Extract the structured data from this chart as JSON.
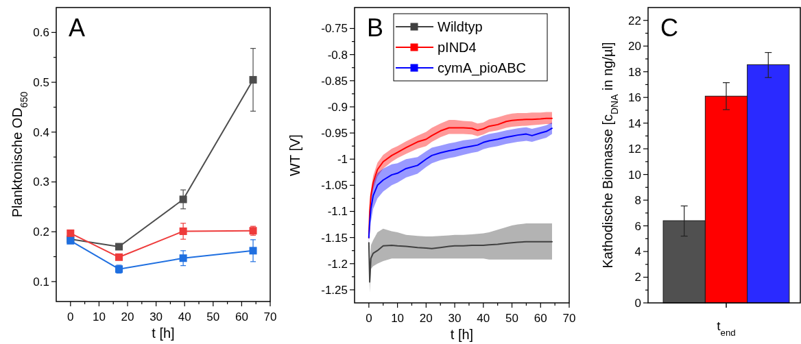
{
  "chart_data": [
    {
      "type": "line",
      "title": "A",
      "xlabel": "t [h]",
      "ylabel": "Planktonische OD$_{650}$",
      "marker": "square",
      "xlim": [
        -5,
        70
      ],
      "ylim": [
        0.06,
        0.65
      ],
      "xticks": [
        0,
        {
          "value": 5,
          "label": null
        },
        10,
        {
          "value": 15,
          "label": null
        },
        20,
        {
          "value": 25,
          "label": null
        },
        30,
        {
          "value": 35,
          "label": null
        },
        40,
        {
          "value": 45,
          "label": null
        },
        50,
        {
          "value": 55,
          "label": null
        },
        60,
        {
          "value": 65,
          "label": null
        },
        70
      ],
      "yticks": [
        0.1,
        {
          "value": 0.15,
          "label": null
        },
        0.2,
        {
          "value": 0.25,
          "label": null
        },
        0.3,
        {
          "value": 0.35,
          "label": null
        },
        0.4,
        {
          "value": 0.45,
          "label": null
        },
        0.5,
        {
          "value": 0.55,
          "label": null
        },
        0.6
      ],
      "x": [
        0,
        17,
        39.5,
        64
      ],
      "series": [
        {
          "color": "#4d4d4d",
          "values": [
            0.185,
            0.17,
            0.265,
            0.505
          ],
          "errors": [
            null,
            null,
            0.019,
            0.063
          ]
        },
        {
          "color": "#ee3b3b",
          "values": [
            0.197,
            0.149,
            0.201,
            0.202
          ],
          "errors": [
            0.006,
            0.005,
            0.016,
            0.009
          ]
        },
        {
          "color": "#1f6fe0",
          "values": [
            0.182,
            0.125,
            0.147,
            0.162
          ],
          "errors": [
            0.005,
            0.008,
            0.015,
            0.022
          ]
        }
      ]
    },
    {
      "type": "line",
      "title": "B",
      "xlabel": "t [h]",
      "ylabel": "WT [V]",
      "legend": "top right",
      "xlim": [
        -5,
        70
      ],
      "ylim": [
        -1.275,
        -0.71
      ],
      "xticks": [
        0,
        {
          "value": 5,
          "label": null
        },
        10,
        {
          "value": 15,
          "label": null
        },
        20,
        {
          "value": 25,
          "label": null
        },
        30,
        {
          "value": 35,
          "label": null
        },
        40,
        {
          "value": 45,
          "label": null
        },
        50,
        {
          "value": 55,
          "label": null
        },
        60,
        {
          "value": 65,
          "label": null
        },
        70
      ],
      "yticks": [
        -0.75,
        {
          "value": -0.775,
          "label": null
        },
        -0.8,
        {
          "value": -0.825,
          "label": null
        },
        -0.85,
        {
          "value": -0.875,
          "label": null
        },
        -0.9,
        {
          "value": -0.925,
          "label": null
        },
        -0.95,
        {
          "value": -0.975,
          "label": null
        },
        -1,
        {
          "value": -1.025,
          "label": null
        },
        -1.05,
        {
          "value": -1.075,
          "label": null
        },
        -1.1,
        {
          "value": -1.125,
          "label": null
        },
        -1.15,
        {
          "value": -1.175,
          "label": null
        },
        -1.2,
        {
          "value": -1.225,
          "label": null
        },
        -1.25
      ],
      "x": [
        0,
        0.3,
        0.7,
        1.5,
        3,
        5,
        8,
        10,
        13,
        17,
        20,
        22,
        25,
        28,
        30,
        33,
        36,
        38,
        40,
        42,
        45,
        48,
        50,
        52,
        55,
        57,
        60,
        62,
        64
      ],
      "series": [
        {
          "name": "Wildtyp",
          "color": "#404040",
          "values": [
            -1.16,
            -1.235,
            -1.19,
            -1.18,
            -1.175,
            -1.166,
            -1.165,
            -1.166,
            -1.167,
            -1.169,
            -1.17,
            -1.171,
            -1.169,
            -1.167,
            -1.166,
            -1.166,
            -1.165,
            -1.165,
            -1.165,
            -1.164,
            -1.163,
            -1.161,
            -1.16,
            -1.159,
            -1.158,
            -1.158,
            -1.158,
            -1.158,
            -1.158
          ],
          "lower": [
            -1.165,
            -1.255,
            -1.21,
            -1.205,
            -1.2,
            -1.195,
            -1.19,
            -1.19,
            -1.19,
            -1.19,
            -1.19,
            -1.19,
            -1.19,
            -1.19,
            -1.19,
            -1.19,
            -1.19,
            -1.19,
            -1.19,
            -1.192,
            -1.192,
            -1.192,
            -1.192,
            -1.192,
            -1.192,
            -1.192,
            -1.192,
            -1.192,
            -1.192
          ],
          "upper": [
            -1.155,
            -1.2,
            -1.165,
            -1.155,
            -1.14,
            -1.133,
            -1.138,
            -1.14,
            -1.145,
            -1.147,
            -1.148,
            -1.148,
            -1.147,
            -1.146,
            -1.145,
            -1.145,
            -1.144,
            -1.143,
            -1.142,
            -1.14,
            -1.135,
            -1.13,
            -1.127,
            -1.125,
            -1.123,
            -1.123,
            -1.123,
            -1.123,
            -1.123
          ]
        },
        {
          "name": "pIND4",
          "color": "#ff0000",
          "values": [
            -1.15,
            -1.1,
            -1.07,
            -1.045,
            -1.02,
            -1.005,
            -0.993,
            -0.987,
            -0.978,
            -0.967,
            -0.962,
            -0.955,
            -0.946,
            -0.94,
            -0.94,
            -0.94,
            -0.941,
            -0.945,
            -0.942,
            -0.937,
            -0.934,
            -0.928,
            -0.926,
            -0.925,
            -0.924,
            -0.924,
            -0.923,
            -0.922,
            -0.922
          ],
          "lower": [
            -1.16,
            -1.11,
            -1.08,
            -1.058,
            -1.033,
            -1.018,
            -1.005,
            -0.998,
            -0.99,
            -0.98,
            -0.975,
            -0.967,
            -0.958,
            -0.952,
            -0.952,
            -0.952,
            -0.953,
            -0.956,
            -0.953,
            -0.948,
            -0.945,
            -0.94,
            -0.938,
            -0.937,
            -0.936,
            -0.935,
            -0.934,
            -0.933,
            -0.933
          ],
          "upper": [
            -1.14,
            -1.09,
            -1.06,
            -1.032,
            -1.007,
            -0.992,
            -0.98,
            -0.975,
            -0.966,
            -0.955,
            -0.948,
            -0.94,
            -0.932,
            -0.925,
            -0.925,
            -0.927,
            -0.928,
            -0.932,
            -0.93,
            -0.924,
            -0.92,
            -0.915,
            -0.913,
            -0.912,
            -0.912,
            -0.911,
            -0.911,
            -0.91,
            -0.91
          ]
        },
        {
          "name": "cymA_pioABC",
          "color": "#0000ff",
          "values": [
            -1.15,
            -1.12,
            -1.095,
            -1.07,
            -1.05,
            -1.04,
            -1.03,
            -1.027,
            -1.018,
            -1.012,
            -1.0,
            -0.993,
            -0.988,
            -0.984,
            -0.982,
            -0.978,
            -0.975,
            -0.973,
            -0.968,
            -0.965,
            -0.962,
            -0.958,
            -0.956,
            -0.954,
            -0.952,
            -0.955,
            -0.95,
            -0.947,
            -0.941
          ],
          "lower": [
            -1.16,
            -1.14,
            -1.12,
            -1.095,
            -1.075,
            -1.062,
            -1.05,
            -1.045,
            -1.035,
            -1.028,
            -1.015,
            -1.008,
            -1.002,
            -0.998,
            -0.996,
            -0.992,
            -0.988,
            -0.986,
            -0.981,
            -0.978,
            -0.975,
            -0.971,
            -0.969,
            -0.967,
            -0.965,
            -0.967,
            -0.962,
            -0.959,
            -0.952
          ],
          "upper": [
            -1.14,
            -1.1,
            -1.07,
            -1.045,
            -1.027,
            -1.018,
            -1.01,
            -1.008,
            -1.0,
            -0.996,
            -0.985,
            -0.978,
            -0.974,
            -0.97,
            -0.968,
            -0.964,
            -0.962,
            -0.96,
            -0.955,
            -0.952,
            -0.949,
            -0.945,
            -0.943,
            -0.941,
            -0.939,
            -0.942,
            -0.938,
            -0.935,
            -0.93
          ]
        }
      ]
    },
    {
      "type": "bar",
      "title": "C",
      "ylabel": "Kathodische Biomasse [c$_{DNA}$ in ng/µl]",
      "ylim": [
        0,
        23
      ],
      "yticks": [
        0,
        {
          "value": 1,
          "label": null
        },
        2,
        {
          "value": 3,
          "label": null
        },
        4,
        {
          "value": 5,
          "label": null
        },
        6,
        {
          "value": 7,
          "label": null
        },
        8,
        {
          "value": 9,
          "label": null
        },
        10,
        {
          "value": 11,
          "label": null
        },
        12,
        {
          "value": 13,
          "label": null
        },
        14,
        {
          "value": 15,
          "label": null
        },
        16,
        {
          "value": 17,
          "label": null
        },
        18,
        {
          "value": 19,
          "label": null
        },
        20,
        {
          "value": 21,
          "label": null
        },
        22
      ],
      "categories": [
        null,
        "t$_{end}$",
        null
      ],
      "values": [
        6.4,
        16.1,
        18.55
      ],
      "colors": [
        "#505050",
        "#ff0000",
        "#2a2aff"
      ],
      "errors": [
        [
          5.2,
          7.55
        ],
        [
          15.05,
          17.15
        ],
        [
          17.55,
          19.5
        ]
      ]
    }
  ]
}
